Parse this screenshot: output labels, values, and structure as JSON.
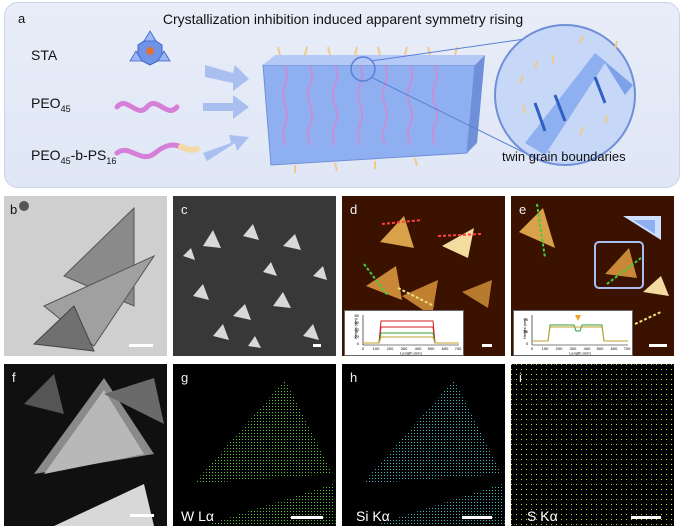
{
  "panel_a": {
    "letter": "a",
    "title": "Crystallization inhibition induced apparent symmetry rising",
    "sta_label": "STA",
    "peo_label": "PEO",
    "peo_sub": "45",
    "block_label_pre": "PEO",
    "block_label_sub1": "45",
    "block_label_mid": "-b-PS",
    "block_label_sub2": "16",
    "twin_label": "twin grain boundaries"
  },
  "panels": {
    "b": "b",
    "c": "c",
    "d": "d",
    "e": "e",
    "f": "f",
    "g": "g",
    "h": "h",
    "i": "i"
  },
  "eds": {
    "g": "W Lα",
    "h": "Si Kα",
    "i": "S Kα"
  },
  "insets": {
    "ylabel": "Height (nm)",
    "xlabel": "Length (nm)",
    "xticks": [
      "0",
      "100",
      "200",
      "300",
      "400",
      "500",
      "600",
      "700"
    ],
    "d_yticks": [
      "0",
      "20",
      "40",
      "60",
      "80"
    ],
    "e_yticks": [
      "0",
      "20",
      "40"
    ]
  },
  "colors": {
    "panel_bg": "#e4eaf7",
    "crystal_blue": "#8fb0f0",
    "eds_w": "#6cf04a",
    "eds_si": "#4fe0e8",
    "eds_s": "#e8e84a"
  }
}
